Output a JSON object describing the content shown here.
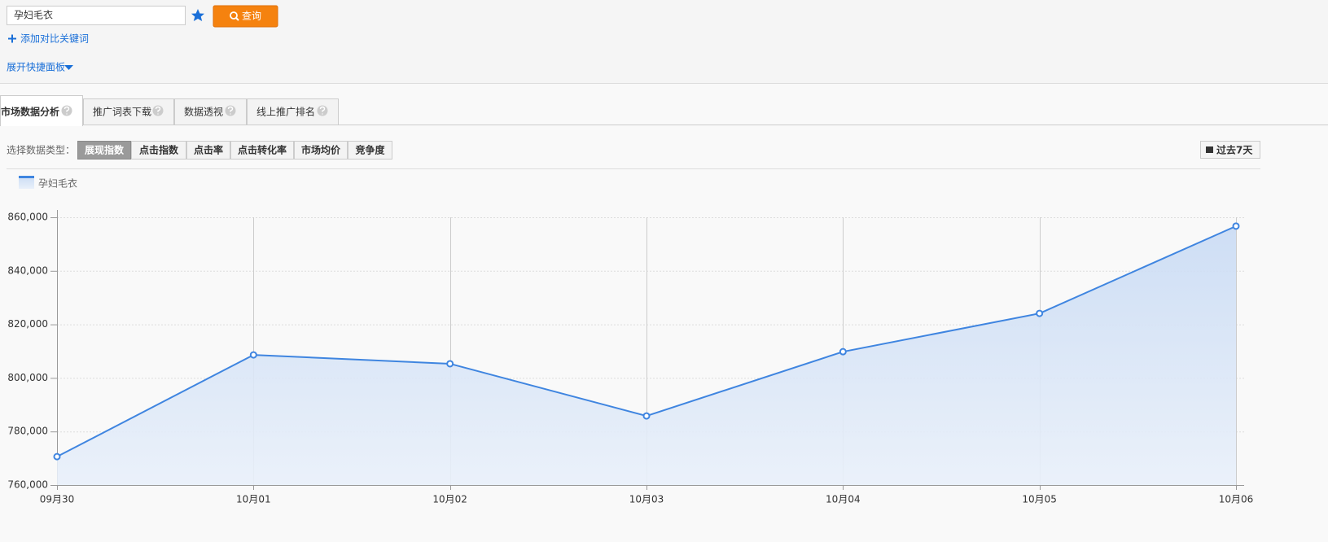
{
  "search": {
    "keyword": "孕妇毛衣",
    "button": "查询"
  },
  "add_keyword": "添加对比关键词",
  "expand_panel": "展开快捷面板",
  "tabs": [
    "市场数据分析",
    "推广词表下载",
    "数据透视",
    "线上推广排名"
  ],
  "data_type_label": "选择数据类型：",
  "data_types": [
    "展现指数",
    "点击指数",
    "点击率",
    "点击转化率",
    "市场均价",
    "竞争度"
  ],
  "range_button": "过去7天",
  "chart_data": {
    "type": "area",
    "categories": [
      "09月30",
      "10月01",
      "10月02",
      "10月03",
      "10月04",
      "10月05",
      "10月06"
    ],
    "series": [
      {
        "name": "孕妇毛衣",
        "color": "#3f85e0",
        "values": [
          770600,
          808600,
          805300,
          785800,
          809800,
          824100,
          856700
        ]
      }
    ],
    "ylim": [
      760000,
      860000
    ],
    "yticks": [
      {
        "value": 760000,
        "label": "760,000"
      },
      {
        "value": 780000,
        "label": "780,000"
      },
      {
        "value": 800000,
        "label": "800,000"
      },
      {
        "value": 820000,
        "label": "820,000"
      },
      {
        "value": 840000,
        "label": "840,000"
      },
      {
        "value": 860000,
        "label": "860,000"
      }
    ],
    "grid": true
  }
}
